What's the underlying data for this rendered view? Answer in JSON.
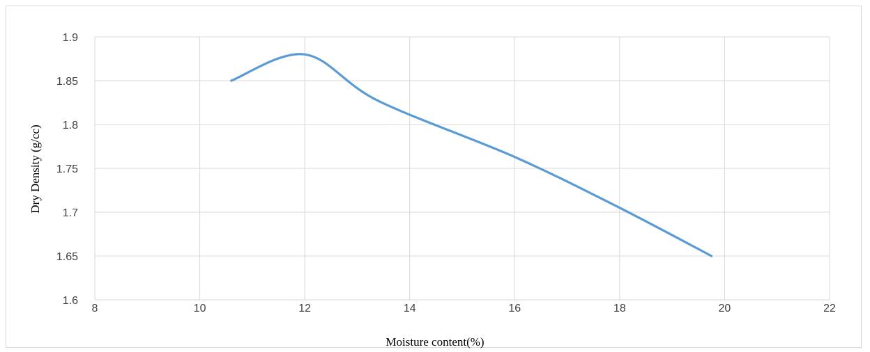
{
  "chart_data": {
    "type": "line",
    "title": "",
    "xlabel": "Moisture content(%)",
    "ylabel": "Dry Density   (g/cc)",
    "xlim": [
      8,
      22
    ],
    "ylim": [
      1.6,
      1.9
    ],
    "xticks": [
      "8",
      "10",
      "12",
      "14",
      "16",
      "18",
      "20",
      "22"
    ],
    "yticks": [
      "1.6",
      "1.65",
      "1.7",
      "1.75",
      "1.8",
      "1.85",
      "1.9"
    ],
    "grid": true,
    "legend": "none",
    "smooth": true,
    "series": [
      {
        "color": "#5b9bd5",
        "x": [
          10.6,
          12.0,
          13.4,
          16.0,
          18.0,
          19.75
        ],
        "y": [
          1.85,
          1.88,
          1.827,
          1.763,
          1.705,
          1.65
        ]
      }
    ]
  }
}
